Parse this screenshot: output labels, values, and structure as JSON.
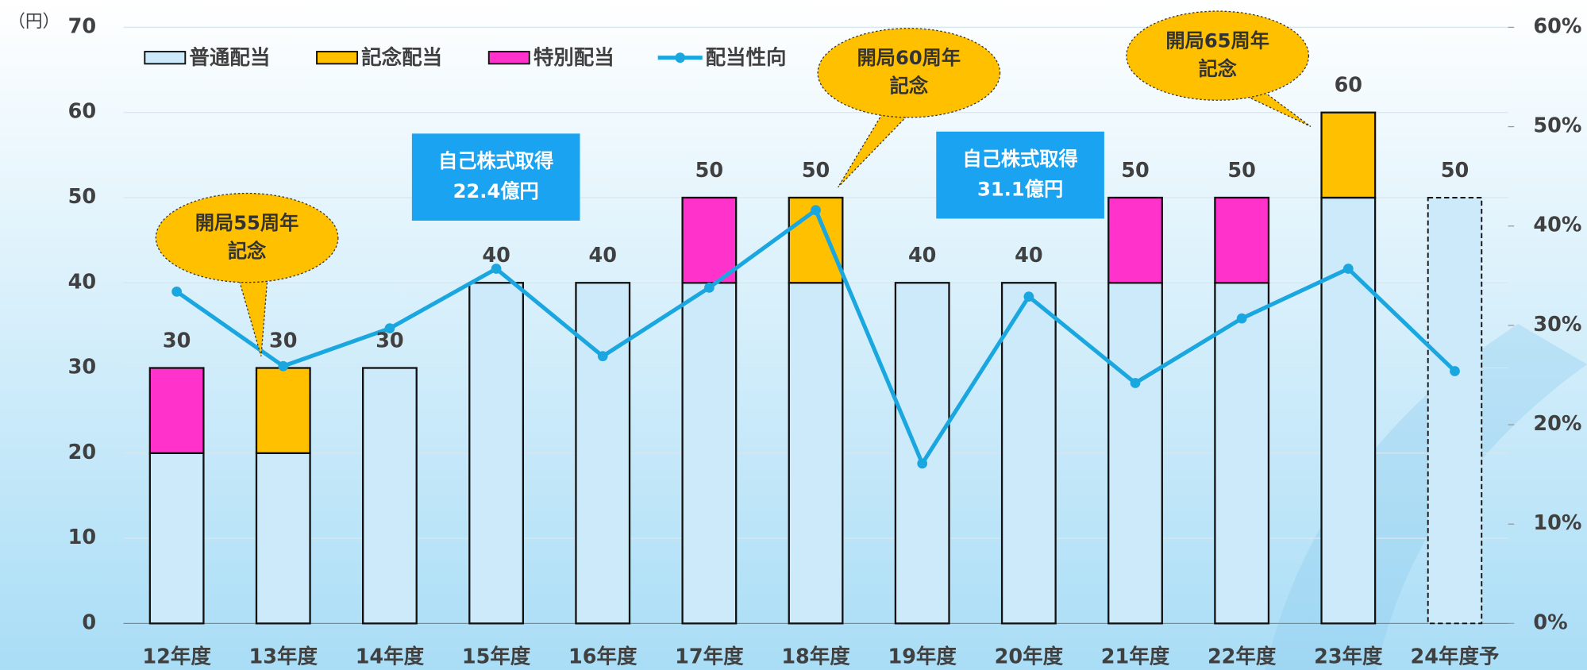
{
  "chart_data": {
    "type": "bar",
    "unit_label": "（円）",
    "categories": [
      "12年度",
      "13年度",
      "14年度",
      "15年度",
      "16年度",
      "17年度",
      "18年度",
      "19年度",
      "20年度",
      "21年度",
      "22年度",
      "23年度",
      "24年度予"
    ],
    "series": [
      {
        "name": "普通配当",
        "color": "#cdeafb",
        "values": [
          20,
          20,
          30,
          40,
          40,
          40,
          40,
          40,
          40,
          40,
          40,
          50,
          50
        ]
      },
      {
        "name": "記念配当",
        "color": "#ffc000",
        "values": [
          null,
          10,
          null,
          null,
          null,
          null,
          10,
          null,
          null,
          null,
          null,
          10,
          null
        ]
      },
      {
        "name": "特別配当",
        "color": "#ff33cc",
        "values": [
          10,
          null,
          null,
          null,
          null,
          10,
          null,
          null,
          null,
          10,
          10,
          null,
          null
        ]
      },
      {
        "name": "配当性向",
        "color": "#1aa7e0",
        "type": "line",
        "axis": "y2",
        "values": [
          33.4,
          25.9,
          29.7,
          35.7,
          26.9,
          33.8,
          41.6,
          16.1,
          32.9,
          24.2,
          30.7,
          35.7,
          25.4
        ]
      }
    ],
    "totals": [
      30,
      30,
      30,
      40,
      40,
      50,
      50,
      40,
      40,
      50,
      50,
      60,
      50
    ],
    "ylim": [
      0,
      70
    ],
    "yticks": [
      0,
      10,
      20,
      30,
      40,
      50,
      60,
      70
    ],
    "y2lim": [
      0,
      60
    ],
    "y2ticks": [
      {
        "value": 0,
        "label": "0%"
      },
      {
        "value": 10,
        "label": "10%"
      },
      {
        "value": 20,
        "label": "20%"
      },
      {
        "value": 30,
        "label": "30%"
      },
      {
        "value": 40,
        "label": "40%"
      },
      {
        "value": 50,
        "label": "50%"
      },
      {
        "value": 60,
        "label": "60%"
      }
    ],
    "grid": true,
    "callouts": [
      [
        "開局55周年",
        "記念"
      ],
      [
        "開局60周年",
        "記念"
      ],
      [
        "開局65周年",
        "記念"
      ]
    ],
    "boxes": [
      [
        "自己株式取得",
        "22.4億円"
      ],
      [
        "自己株式取得",
        "31.1億円"
      ]
    ]
  }
}
